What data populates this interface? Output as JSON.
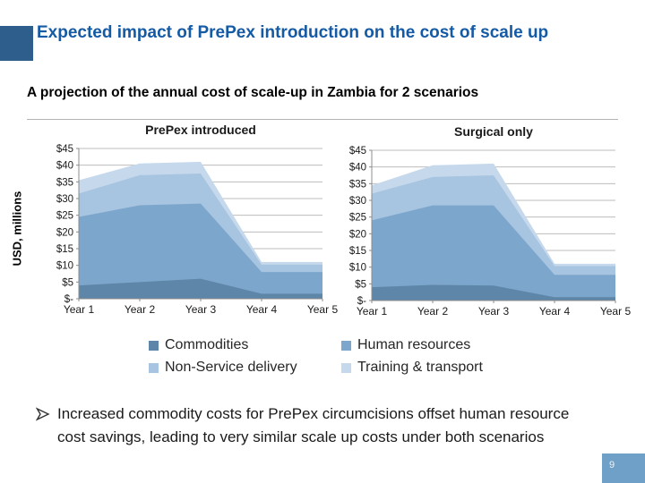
{
  "header": {
    "title": "Expected impact of PrePex introduction on the cost of scale up",
    "subtitle": "A projection of the annual cost of scale-up in Zambia for 2 scenarios"
  },
  "charts": {
    "y_axis_title": "USD, millions",
    "y_tick_labels": [
      "$-",
      "$5",
      "$10",
      "$15",
      "$20",
      "$25",
      "$30",
      "$35",
      "$40",
      "$45"
    ],
    "grid_step": 5,
    "grid_on": true
  },
  "chart_data": [
    {
      "type": "area",
      "stacked": true,
      "title": "PrePex introduced",
      "categories": [
        "Year 1",
        "Year 2",
        "Year 3",
        "Year 4",
        "Year 5"
      ],
      "xlabel": "",
      "ylabel": "USD, millions",
      "ylim": [
        0,
        45
      ],
      "series": [
        {
          "name": "Commodities",
          "color": "#5e86a8",
          "values": [
            4,
            5,
            6,
            1.5,
            1.5
          ]
        },
        {
          "name": "Human resources",
          "color": "#7da6cc",
          "values": [
            20.5,
            23,
            22.5,
            6.5,
            6.5
          ]
        },
        {
          "name": "Non-Service delivery",
          "color": "#a7c4e0",
          "values": [
            7,
            9,
            9,
            2.2,
            2.2
          ]
        },
        {
          "name": "Training & transport",
          "color": "#c6d9ec",
          "values": [
            4,
            3.5,
            3.5,
            0.8,
            0.8
          ]
        }
      ]
    },
    {
      "type": "area",
      "stacked": true,
      "title": "Surgical only",
      "categories": [
        "Year 1",
        "Year 2",
        "Year 3",
        "Year 4",
        "Year 5"
      ],
      "xlabel": "",
      "ylabel": "USD, millions",
      "ylim": [
        0,
        45
      ],
      "series": [
        {
          "name": "Commodities",
          "color": "#5e86a8",
          "values": [
            4,
            4.7,
            4.5,
            1,
            1
          ]
        },
        {
          "name": "Human resources",
          "color": "#7da6cc",
          "values": [
            20,
            23.8,
            24,
            6.7,
            6.7
          ]
        },
        {
          "name": "Non-Service delivery",
          "color": "#a7c4e0",
          "values": [
            8,
            8.5,
            9,
            2.6,
            2.6
          ]
        },
        {
          "name": "Training & transport",
          "color": "#c6d9ec",
          "values": [
            2.5,
            3.5,
            3.5,
            0.7,
            0.7
          ]
        }
      ]
    }
  ],
  "legend": {
    "items": [
      {
        "label": "Commodities",
        "color": "#5e86a8"
      },
      {
        "label": "Human resources",
        "color": "#7da6cc"
      },
      {
        "label": "Non-Service delivery",
        "color": "#a7c4e0"
      },
      {
        "label": "Training & transport",
        "color": "#c6d9ec"
      }
    ]
  },
  "bullet": {
    "text": "Increased commodity costs for PrePex circumcisions offset human resource cost savings, leading to very similar scale up costs under both scenarios"
  },
  "footer": {
    "page_number": "9"
  }
}
